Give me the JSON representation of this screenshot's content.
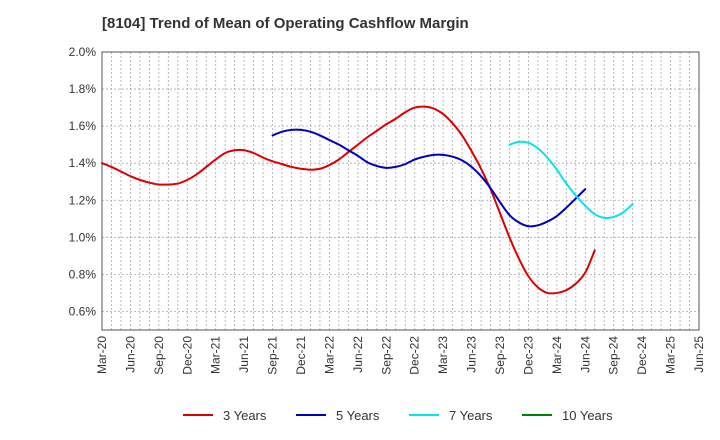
{
  "chart_data": {
    "type": "line",
    "title": "[8104]  Trend of Mean of Operating Cashflow Margin",
    "xlabel": "",
    "ylabel": "",
    "x_ticks": [
      "Mar-20",
      "Jun-20",
      "Sep-20",
      "Dec-20",
      "Mar-21",
      "Jun-21",
      "Sep-21",
      "Dec-21",
      "Mar-22",
      "Jun-22",
      "Sep-22",
      "Dec-22",
      "Mar-23",
      "Jun-23",
      "Sep-23",
      "Dec-23",
      "Mar-24",
      "Jun-24",
      "Sep-24",
      "Dec-24",
      "Mar-25",
      "Jun-25"
    ],
    "y_ticks": [
      "0.6%",
      "0.8%",
      "1.0%",
      "1.2%",
      "1.4%",
      "1.6%",
      "1.8%",
      "2.0%"
    ],
    "ylim": [
      0.5,
      2.0
    ],
    "grid": true,
    "legend_position": "bottom",
    "colors": {
      "3 Years": "#dd0000",
      "5 Years": "#0000bb",
      "7 Years": "#00e5ee",
      "10 Years": "#008000"
    },
    "series": [
      {
        "name": "3 Years",
        "start_index": 0,
        "values": [
          1.4,
          1.38,
          1.355,
          1.33,
          1.31,
          1.295,
          1.285,
          1.285,
          1.29,
          1.31,
          1.34,
          1.38,
          1.42,
          1.455,
          1.47,
          1.47,
          1.455,
          1.43,
          1.41,
          1.395,
          1.38,
          1.37,
          1.365,
          1.37,
          1.39,
          1.42,
          1.46,
          1.5,
          1.54,
          1.575,
          1.61,
          1.64,
          1.675,
          1.7,
          1.705,
          1.695,
          1.665,
          1.615,
          1.55,
          1.465,
          1.37,
          1.26,
          1.13,
          1.0,
          0.885,
          0.79,
          0.73,
          0.7,
          0.7,
          0.715,
          0.75,
          0.81,
          0.93
        ]
      },
      {
        "name": "5 Years",
        "start_index": 18,
        "values": [
          1.55,
          1.57,
          1.58,
          1.58,
          1.57,
          1.55,
          1.525,
          1.5,
          1.47,
          1.44,
          1.405,
          1.385,
          1.375,
          1.38,
          1.395,
          1.42,
          1.435,
          1.445,
          1.445,
          1.435,
          1.415,
          1.38,
          1.33,
          1.265,
          1.19,
          1.12,
          1.08,
          1.06,
          1.065,
          1.085,
          1.115,
          1.16,
          1.21,
          1.26
        ]
      },
      {
        "name": "7 Years",
        "start_index": 43,
        "values": [
          1.5,
          1.515,
          1.51,
          1.48,
          1.43,
          1.365,
          1.29,
          1.225,
          1.17,
          1.125,
          1.105,
          1.11,
          1.135,
          1.18
        ]
      },
      {
        "name": "10 Years",
        "start_index": 0,
        "values": []
      }
    ]
  }
}
